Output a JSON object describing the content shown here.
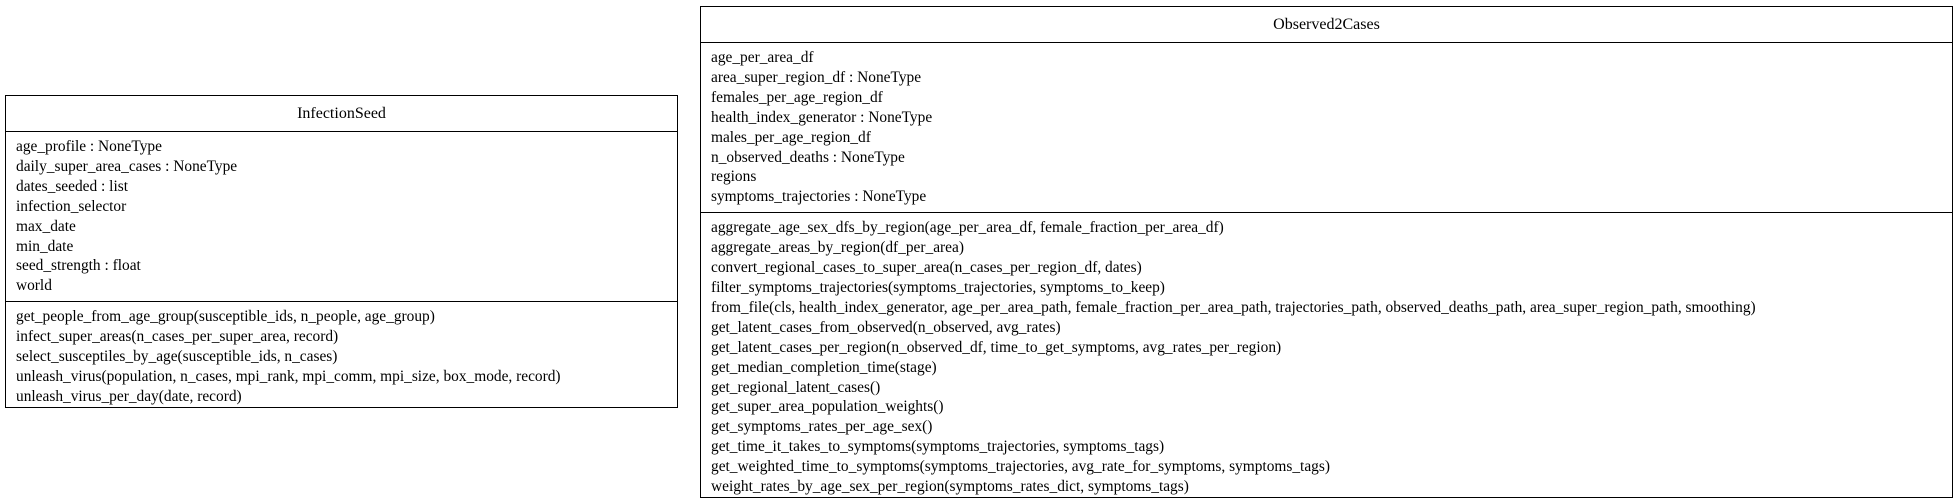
{
  "classes": [
    {
      "name": "InfectionSeed",
      "attributes": [
        "age_profile : NoneType",
        "daily_super_area_cases : NoneType",
        "dates_seeded : list",
        "infection_selector",
        "max_date",
        "min_date",
        "seed_strength : float",
        "world"
      ],
      "methods": [
        "get_people_from_age_group(susceptible_ids, n_people, age_group)",
        "infect_super_areas(n_cases_per_super_area, record)",
        "select_susceptiles_by_age(susceptible_ids, n_cases)",
        "unleash_virus(population, n_cases, mpi_rank, mpi_comm, mpi_size, box_mode, record)",
        "unleash_virus_per_day(date, record)"
      ]
    },
    {
      "name": "Observed2Cases",
      "attributes": [
        "age_per_area_df",
        "area_super_region_df : NoneType",
        "females_per_age_region_df",
        "health_index_generator : NoneType",
        "males_per_age_region_df",
        "n_observed_deaths : NoneType",
        "regions",
        "symptoms_trajectories : NoneType"
      ],
      "methods": [
        "aggregate_age_sex_dfs_by_region(age_per_area_df, female_fraction_per_area_df)",
        "aggregate_areas_by_region(df_per_area)",
        "convert_regional_cases_to_super_area(n_cases_per_region_df, dates)",
        "filter_symptoms_trajectories(symptoms_trajectories, symptoms_to_keep)",
        "from_file(cls, health_index_generator, age_per_area_path, female_fraction_per_area_path, trajectories_path, observed_deaths_path, area_super_region_path, smoothing)",
        "get_latent_cases_from_observed(n_observed, avg_rates)",
        "get_latent_cases_per_region(n_observed_df, time_to_get_symptoms, avg_rates_per_region)",
        "get_median_completion_time(stage)",
        "get_regional_latent_cases()",
        "get_super_area_population_weights()",
        "get_symptoms_rates_per_age_sex()",
        "get_time_it_takes_to_symptoms(symptoms_trajectories, symptoms_tags)",
        "get_weighted_time_to_symptoms(symptoms_trajectories, avg_rate_for_symptoms, symptoms_tags)",
        "weight_rates_by_age_sex_per_region(symptoms_rates_dict, symptoms_tags)"
      ]
    }
  ]
}
